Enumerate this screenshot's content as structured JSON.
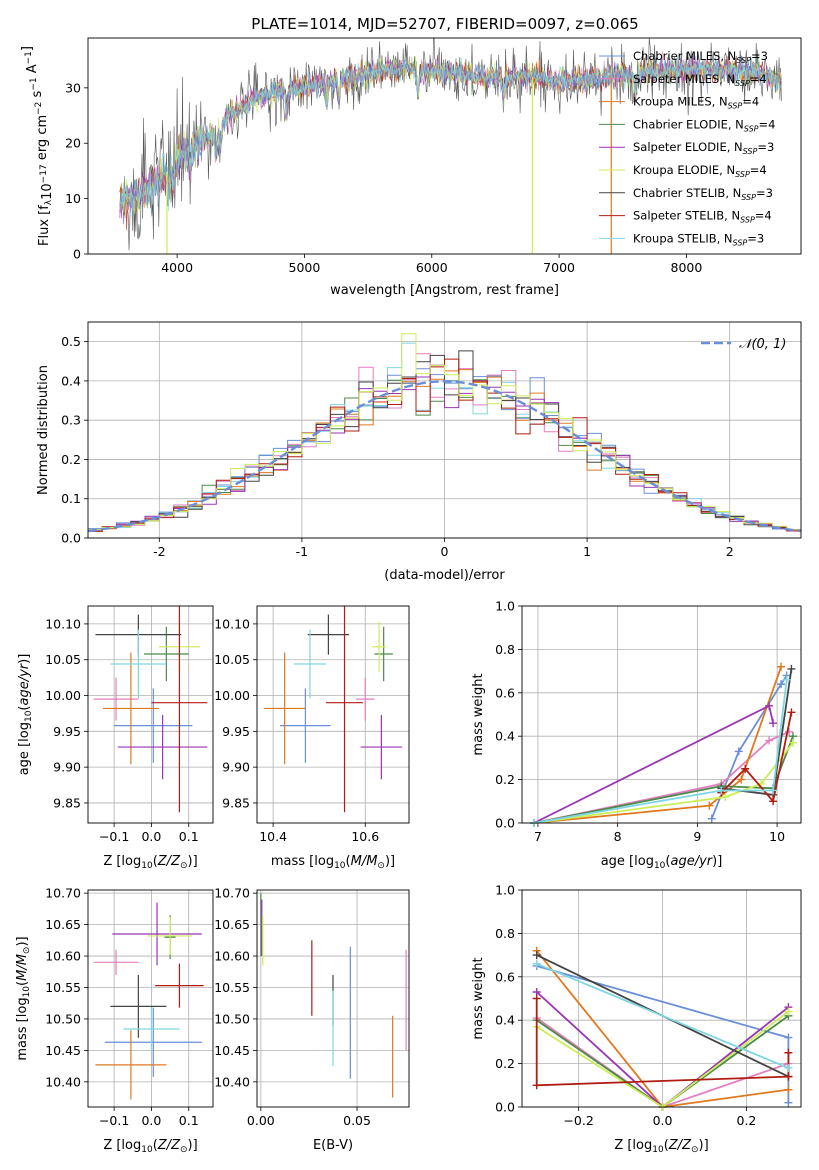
{
  "figure_title": "PLATE=1014, MJD=52707, FIBERID=0097, z=0.065",
  "colors": {
    "chabrier_miles": "#6a8fd8",
    "salpeter_miles": "#e37fc0",
    "kroupa_miles": "#e07820",
    "chabrier_elodie": "#4a8a4a",
    "salpeter_elodie": "#9a35b5",
    "kroupa_elodie": "#ccee55",
    "chabrier_stelib": "#444444",
    "salpeter_stelib": "#b01c10",
    "kroupa_stelib": "#7fd6e2",
    "normal_curve": "#6a8fd8",
    "grid": "#b0b0b0"
  },
  "chart_data": [
    {
      "id": "spectrum",
      "type": "line",
      "title": "PLATE=1014, MJD=52707, FIBERID=0097, z=0.065",
      "xlabel": "wavelength [Angstrom, rest frame]",
      "ylabel": "Flux [f_λ10^-17 erg cm^-2 s^-1 A^-1]",
      "xlim": [
        3300,
        8900
      ],
      "ylim": [
        0,
        39
      ],
      "xticks": [
        4000,
        5000,
        6000,
        7000,
        8000
      ],
      "yticks": [
        0,
        10,
        20,
        30
      ],
      "grid": false,
      "legend_position": "top-right",
      "legend": [
        "Chabrier MILES, N_SSP=3",
        "Salpeter MILES, N_SSP=4",
        "Kroupa MILES, N_SSP=4",
        "Chabrier ELODIE, N_SSP=4",
        "Salpeter ELODIE, N_SSP=3",
        "Kroupa ELODIE, N_SSP=4",
        "Chabrier STELIB, N_SSP=3",
        "Salpeter STELIB, N_SSP=4",
        "Kroupa STELIB, N_SSP=3"
      ],
      "continuum": {
        "x": [
          3550,
          3700,
          3850,
          4000,
          4100,
          4250,
          4400,
          4600,
          4800,
          5000,
          5200,
          5400,
          5600,
          5800,
          6000,
          6200,
          6400,
          6600,
          6800,
          7000,
          7200,
          7400,
          7600,
          7800,
          8000,
          8200,
          8400,
          8600,
          8750
        ],
        "y": [
          9,
          11,
          13,
          17,
          19,
          21,
          25,
          28,
          29.5,
          30,
          31,
          32,
          33,
          33.5,
          33,
          32.5,
          32,
          32,
          32,
          31.5,
          31.5,
          32,
          32.5,
          33,
          33.5,
          33.5,
          33,
          32.5,
          31
        ]
      },
      "spikes": [
        {
          "x": 3920,
          "y": 0
        },
        {
          "x": 6790,
          "y": 0
        },
        {
          "x": 7410,
          "y": 0
        }
      ]
    },
    {
      "id": "residuals",
      "type": "histogram",
      "xlabel": "(data-model)/error",
      "ylabel": "Normed distribution",
      "xlim": [
        -2.5,
        2.5
      ],
      "ylim": [
        0,
        0.55
      ],
      "xticks": [
        -2,
        -1,
        0,
        1,
        2
      ],
      "yticks": [
        0.0,
        0.1,
        0.2,
        0.3,
        0.4,
        0.5
      ],
      "grid": true,
      "bins": {
        "start": -2.5,
        "width": 0.1,
        "count": 50
      },
      "legend_position": "top-right",
      "legend": [
        "𝒩(0, 1)"
      ],
      "normal": {
        "mean": 0,
        "sigma": 1
      },
      "annotations": {
        "spike_bin_center": -0.25,
        "spike_value": 0.52
      }
    },
    {
      "id": "age_vs_Z",
      "type": "errorbar",
      "xlabel": "Z [log10(Z/Z☉)]",
      "ylabel": "age  [log10(age/yr)]",
      "xlim": [
        -0.17,
        0.165
      ],
      "ylim": [
        9.822,
        10.125
      ],
      "xticks": [
        -0.1,
        0.0,
        0.1
      ],
      "xtick_labels": [
        "−0.1",
        "0.0",
        "0.1"
      ],
      "yticks": [
        9.85,
        9.9,
        9.95,
        10.0,
        10.05,
        10.1
      ],
      "grid": true,
      "points": [
        {
          "model": "chabrier_miles",
          "x": 0.005,
          "xerr": 0.105,
          "y": 9.958,
          "yerr": 0.052
        },
        {
          "model": "salpeter_miles",
          "x": -0.095,
          "xerr": 0.06,
          "y": 9.995,
          "yerr": 0.03
        },
        {
          "model": "kroupa_miles",
          "x": -0.055,
          "xerr": 0.075,
          "y": 9.982,
          "yerr": 0.078
        },
        {
          "model": "chabrier_elodie",
          "x": 0.04,
          "xerr": 0.06,
          "y": 10.058,
          "yerr": 0.038
        },
        {
          "model": "salpeter_elodie",
          "x": 0.03,
          "xerr": 0.12,
          "y": 9.928,
          "yerr": 0.045
        },
        {
          "model": "kroupa_elodie",
          "x": 0.075,
          "xerr": 0.055,
          "y": 10.068,
          "yerr": 0.035
        },
        {
          "model": "chabrier_stelib",
          "x": -0.035,
          "xerr": 0.115,
          "y": 10.085,
          "yerr": 0.028
        },
        {
          "model": "salpeter_stelib",
          "x": 0.075,
          "xerr": 0.075,
          "y": 9.99,
          "yerr": 0.153
        },
        {
          "model": "kroupa_stelib",
          "x": -0.035,
          "xerr": 0.075,
          "y": 10.044,
          "yerr": 0.048
        }
      ]
    },
    {
      "id": "age_vs_mass",
      "type": "errorbar",
      "xlabel": "mass [log10(M/M☉)]",
      "ylabel": "",
      "xlim": [
        10.365,
        10.695
      ],
      "ylim": [
        9.822,
        10.125
      ],
      "xticks": [
        10.4,
        10.6
      ],
      "yticks": [
        9.85,
        9.9,
        9.95,
        10.0,
        10.05,
        10.1
      ],
      "grid": true,
      "points": [
        {
          "model": "chabrier_miles",
          "x": 10.47,
          "xerr": 0.055,
          "y": 9.958,
          "yerr": 0.052
        },
        {
          "model": "salpeter_miles",
          "x": 10.6,
          "xerr": 0.02,
          "y": 9.995,
          "yerr": 0.03
        },
        {
          "model": "kroupa_miles",
          "x": 10.425,
          "xerr": 0.045,
          "y": 9.982,
          "yerr": 0.078
        },
        {
          "model": "chabrier_elodie",
          "x": 10.64,
          "xerr": 0.02,
          "y": 10.058,
          "yerr": 0.038
        },
        {
          "model": "salpeter_elodie",
          "x": 10.635,
          "xerr": 0.045,
          "y": 9.928,
          "yerr": 0.045
        },
        {
          "model": "kroupa_elodie",
          "x": 10.63,
          "xerr": 0.015,
          "y": 10.068,
          "yerr": 0.035
        },
        {
          "model": "chabrier_stelib",
          "x": 10.52,
          "xerr": 0.045,
          "y": 10.085,
          "yerr": 0.028
        },
        {
          "model": "salpeter_stelib",
          "x": 10.555,
          "xerr": 0.04,
          "y": 9.99,
          "yerr": 0.153
        },
        {
          "model": "kroupa_stelib",
          "x": 10.48,
          "xerr": 0.035,
          "y": 10.044,
          "yerr": 0.048
        }
      ]
    },
    {
      "id": "massweight_vs_age",
      "type": "line",
      "xlabel": "age  [log10(age/yr)]",
      "ylabel": "mass weight",
      "xlim": [
        6.8,
        10.3
      ],
      "ylim": [
        0,
        1
      ],
      "xticks": [
        7,
        8,
        9,
        10
      ],
      "yticks": [
        0.0,
        0.2,
        0.4,
        0.6,
        0.8,
        1.0
      ],
      "grid": true,
      "series": [
        {
          "model": "chabrier_miles",
          "x": [
            9.18,
            9.52,
            10.05,
            10.12
          ],
          "y": [
            0.02,
            0.33,
            0.64,
            0.68
          ]
        },
        {
          "model": "salpeter_miles",
          "x": [
            6.95,
            9.3,
            9.9,
            10.15
          ],
          "y": [
            0.0,
            0.18,
            0.38,
            0.42
          ]
        },
        {
          "model": "kroupa_miles",
          "x": [
            6.95,
            9.15,
            9.55,
            10.05
          ],
          "y": [
            0.0,
            0.08,
            0.2,
            0.72
          ]
        },
        {
          "model": "chabrier_elodie",
          "x": [
            6.95,
            9.3,
            9.95,
            10.2
          ],
          "y": [
            0.0,
            0.17,
            0.16,
            0.4
          ]
        },
        {
          "model": "salpeter_elodie",
          "x": [
            6.95,
            9.9,
            9.95
          ],
          "y": [
            0.0,
            0.54,
            0.46
          ]
        },
        {
          "model": "kroupa_elodie",
          "x": [
            6.95,
            9.35,
            9.8,
            10.2
          ],
          "y": [
            0.0,
            0.12,
            0.18,
            0.37
          ]
        },
        {
          "model": "chabrier_stelib",
          "x": [
            9.3,
            9.95,
            10.18
          ],
          "y": [
            0.16,
            0.13,
            0.71
          ]
        },
        {
          "model": "salpeter_stelib",
          "x": [
            9.3,
            9.6,
            9.95,
            10.18
          ],
          "y": [
            0.14,
            0.25,
            0.1,
            0.51
          ]
        },
        {
          "model": "kroupa_stelib",
          "x": [
            6.95,
            9.3,
            9.95,
            10.12
          ],
          "y": [
            0.0,
            0.15,
            0.15,
            0.66
          ]
        }
      ]
    },
    {
      "id": "mass_vs_Z",
      "type": "errorbar",
      "xlabel": "Z [log10(Z/Z☉)]",
      "ylabel": "mass [log10(M/M☉)]",
      "xlim": [
        -0.17,
        0.165
      ],
      "ylim": [
        10.36,
        10.705
      ],
      "xticks": [
        -0.1,
        0.0,
        0.1
      ],
      "xtick_labels": [
        "−0.1",
        "0.0",
        "0.1"
      ],
      "yticks": [
        10.4,
        10.45,
        10.5,
        10.55,
        10.6,
        10.65,
        10.7
      ],
      "grid": true,
      "points": [
        {
          "model": "chabrier_miles",
          "x": 0.005,
          "xerr": 0.13,
          "y": 10.463,
          "yerr": 0.055
        },
        {
          "model": "salpeter_miles",
          "x": -0.095,
          "xerr": 0.06,
          "y": 10.59,
          "yerr": 0.02
        },
        {
          "model": "kroupa_miles",
          "x": -0.055,
          "xerr": 0.095,
          "y": 10.427,
          "yerr": 0.055
        },
        {
          "model": "chabrier_elodie",
          "x": 0.05,
          "xerr": 0.015,
          "y": 10.63,
          "yerr": 0.035
        },
        {
          "model": "salpeter_elodie",
          "x": 0.015,
          "xerr": 0.12,
          "y": 10.635,
          "yerr": 0.05
        },
        {
          "model": "kroupa_elodie",
          "x": 0.05,
          "xerr": 0.06,
          "y": 10.632,
          "yerr": 0.03
        },
        {
          "model": "chabrier_stelib",
          "x": -0.035,
          "xerr": 0.075,
          "y": 10.52,
          "yerr": 0.05
        },
        {
          "model": "salpeter_stelib",
          "x": 0.075,
          "xerr": 0.065,
          "y": 10.553,
          "yerr": 0.035
        },
        {
          "model": "kroupa_stelib",
          "x": 0.0,
          "xerr": 0.075,
          "y": 10.484,
          "yerr": 0.035
        }
      ]
    },
    {
      "id": "mass_vs_EBV",
      "type": "errorbar",
      "xlabel": "E(B-V)",
      "ylabel": "",
      "xlim": [
        -0.002,
        0.077
      ],
      "ylim": [
        10.36,
        10.705
      ],
      "xticks": [
        0.0,
        0.05
      ],
      "xtick_labels": [
        "0.00",
        "0.05"
      ],
      "yticks": [
        10.4,
        10.45,
        10.5,
        10.55,
        10.6,
        10.65,
        10.7
      ],
      "grid": true,
      "points": [
        {
          "model": "chabrier_miles",
          "x": 0.0465,
          "y": 10.51,
          "yerr": 0.105
        },
        {
          "model": "salpeter_miles",
          "x": 0.0755,
          "y": 10.53,
          "yerr": 0.08
        },
        {
          "model": "kroupa_miles",
          "x": 0.0685,
          "y": 10.44,
          "yerr": 0.065
        },
        {
          "model": "chabrier_elodie",
          "x": 0.0,
          "y": 10.65,
          "yerr": 0.05
        },
        {
          "model": "salpeter_elodie",
          "x": 0.0005,
          "y": 10.645,
          "yerr": 0.045
        },
        {
          "model": "kroupa_elodie",
          "x": 0.001,
          "y": 10.625,
          "yerr": 0.04
        },
        {
          "model": "chabrier_stelib",
          "x": 0.0375,
          "y": 10.53,
          "yerr": 0.04
        },
        {
          "model": "salpeter_stelib",
          "x": 0.0265,
          "y": 10.565,
          "yerr": 0.06
        },
        {
          "model": "kroupa_stelib",
          "x": 0.0375,
          "y": 10.485,
          "yerr": 0.06
        }
      ]
    },
    {
      "id": "massweight_vs_Z",
      "type": "line",
      "xlabel": "Z [log10(Z/Z☉)]",
      "ylabel": "mass weight",
      "xlim": [
        -0.335,
        0.33
      ],
      "ylim": [
        0,
        1
      ],
      "xticks": [
        -0.2,
        0.0,
        0.2
      ],
      "xtick_labels": [
        "−0.2",
        "0.0",
        "0.2"
      ],
      "yticks": [
        0.0,
        0.2,
        0.4,
        0.6,
        0.8,
        1.0
      ],
      "grid": true,
      "series": [
        {
          "model": "chabrier_miles",
          "x": [
            0.3,
            0.3,
            -0.3
          ],
          "y": [
            0.02,
            0.32,
            0.65
          ]
        },
        {
          "model": "salpeter_miles",
          "x": [
            -0.3,
            0.0,
            0.3
          ],
          "y": [
            0.41,
            0.0,
            0.2
          ]
        },
        {
          "model": "kroupa_miles",
          "x": [
            -0.3,
            0.0,
            0.3
          ],
          "y": [
            0.72,
            0.0,
            0.08
          ]
        },
        {
          "model": "chabrier_elodie",
          "x": [
            -0.3,
            0.0,
            0.3
          ],
          "y": [
            0.4,
            0.0,
            0.42
          ]
        },
        {
          "model": "salpeter_elodie",
          "x": [
            -0.3,
            0.0,
            0.3
          ],
          "y": [
            0.53,
            0.0,
            0.46
          ]
        },
        {
          "model": "kroupa_elodie",
          "x": [
            -0.3,
            0.0,
            0.3
          ],
          "y": [
            0.37,
            0.0,
            0.44
          ]
        },
        {
          "model": "chabrier_stelib",
          "x": [
            -0.3,
            0.3
          ],
          "y": [
            0.7,
            0.14
          ]
        },
        {
          "model": "salpeter_stelib",
          "x": [
            -0.3,
            -0.3,
            0.3,
            0.3
          ],
          "y": [
            0.5,
            0.1,
            0.14,
            0.25
          ]
        },
        {
          "model": "kroupa_stelib",
          "x": [
            -0.3,
            0.3
          ],
          "y": [
            0.66,
            0.18
          ]
        }
      ]
    }
  ]
}
